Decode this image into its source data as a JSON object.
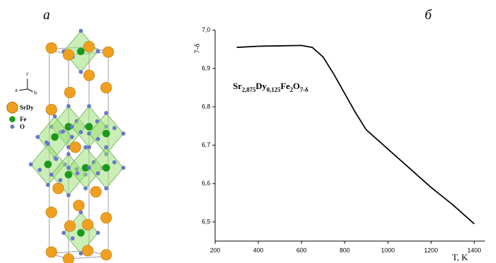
{
  "panels": {
    "left": "а",
    "right": "б"
  },
  "structure": {
    "axes": {
      "c": "c",
      "a": "a",
      "b": "b"
    },
    "legend": [
      "SrDy",
      "Fe",
      "O"
    ]
  },
  "chart_data": {
    "type": "line",
    "x": [
      300,
      400,
      500,
      600,
      650,
      700,
      750,
      800,
      850,
      900,
      1000,
      1100,
      1200,
      1300,
      1400
    ],
    "series": [
      {
        "color": "#000000",
        "values": [
          6.955,
          6.958,
          6.959,
          6.96,
          6.955,
          6.93,
          6.885,
          6.835,
          6.785,
          6.74,
          6.69,
          6.64,
          6.59,
          6.545,
          6.495
        ]
      }
    ],
    "xlim": [
      200,
      1450
    ],
    "ylim": [
      6.45,
      7.0
    ],
    "xticks": [
      200,
      400,
      600,
      800,
      1000,
      1200,
      1400
    ],
    "yticks": [
      {
        "value": 6.5,
        "label": "6,5"
      },
      {
        "value": 6.6,
        "label": "6,6"
      },
      {
        "value": 6.7,
        "label": "6,7"
      },
      {
        "value": 6.8,
        "label": "6,8"
      },
      {
        "value": 6.9,
        "label": "6,9"
      },
      {
        "value": 7.0,
        "label": "7,0"
      }
    ],
    "xlabel": "T, K",
    "ylabel": "7-δ",
    "annotation": [
      {
        "text": "Sr"
      },
      {
        "text": "2,875",
        "sub": true
      },
      {
        "text": "Dy"
      },
      {
        "text": "0,125",
        "sub": true
      },
      {
        "text": "Fe"
      },
      {
        "text": "2",
        "sub": true
      },
      {
        "text": "O"
      },
      {
        "text": "7-δ",
        "sub": true
      }
    ]
  }
}
